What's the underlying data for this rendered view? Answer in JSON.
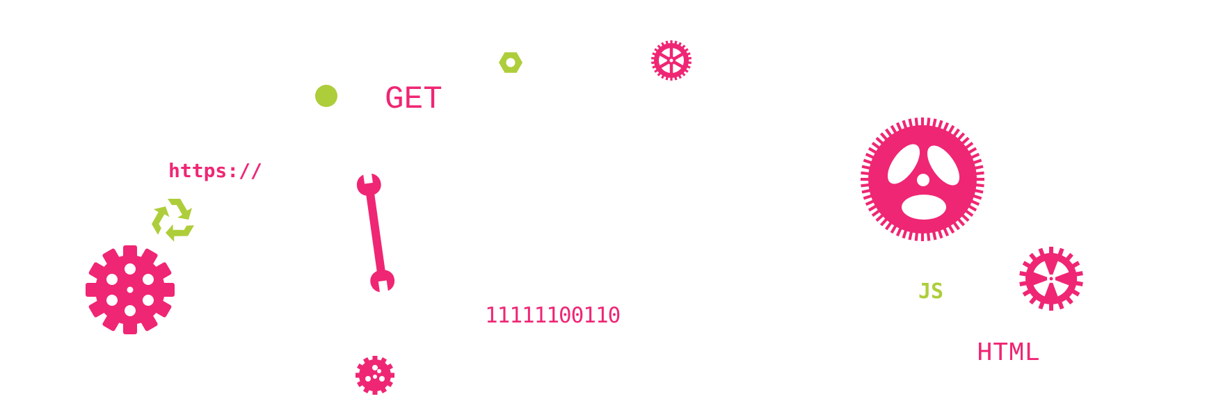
{
  "labels": {
    "get": "GET",
    "https": "https://",
    "binary": "11111100110",
    "js": "JS",
    "html": "HTML"
  },
  "colors": {
    "pink": "#ef2674",
    "green": "#aecd3a",
    "background": "#ffffff"
  },
  "icons": [
    "gear-icon",
    "wrench-icon",
    "recycle-icon",
    "hex-nut-icon",
    "dot-icon",
    "wheel-gear-icon",
    "spoke-gear-icon"
  ]
}
